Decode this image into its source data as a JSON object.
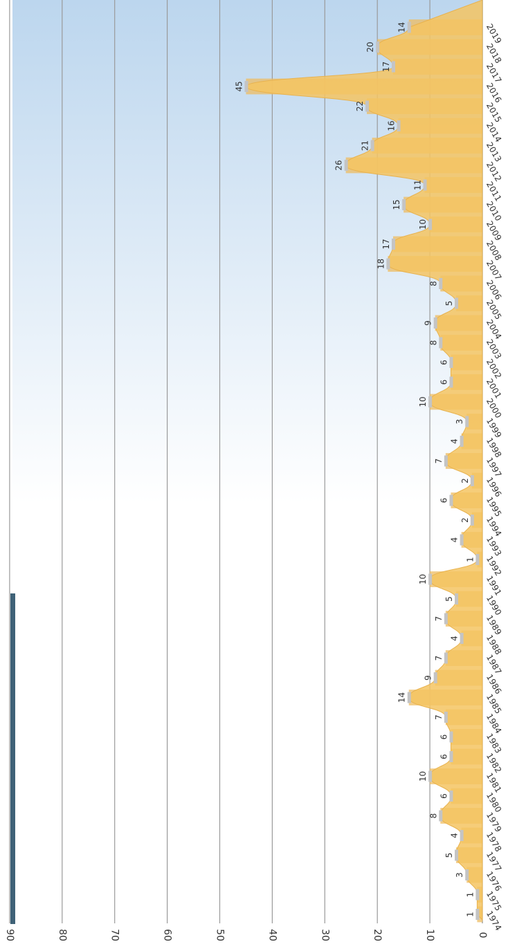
{
  "chart_data": {
    "type": "area",
    "orientation": "rotated-90-clockwise",
    "title": "",
    "xlabel": "",
    "ylabel": "",
    "ylim": [
      0,
      90
    ],
    "y_ticks": [
      0,
      10,
      20,
      30,
      40,
      50,
      60,
      70,
      80,
      90
    ],
    "grid": true,
    "legend": "none",
    "categories": [
      "1974",
      "1975",
      "1976",
      "1977",
      "1978",
      "1979",
      "1980",
      "1981",
      "1982",
      "1983",
      "1984",
      "1985",
      "1986",
      "1987",
      "1988",
      "1989",
      "1990",
      "1991",
      "1992",
      "1993",
      "1994",
      "1995",
      "1996",
      "1997",
      "1998",
      "1999",
      "2000",
      "2001",
      "2002",
      "2003",
      "2004",
      "2005",
      "2006",
      "2007",
      "2008",
      "2009",
      "2010",
      "2011",
      "2012",
      "2013",
      "2014",
      "2015",
      "2016",
      "2017",
      "2018",
      "2019"
    ],
    "values": [
      1,
      1,
      3,
      5,
      4,
      8,
      6,
      10,
      6,
      6,
      7,
      14,
      9,
      7,
      4,
      7,
      5,
      10,
      1,
      4,
      2,
      6,
      2,
      7,
      4,
      3,
      10,
      6,
      6,
      8,
      9,
      5,
      8,
      18,
      17,
      10,
      15,
      11,
      26,
      21,
      16,
      22,
      45,
      17,
      20,
      14
    ],
    "data_labels": [
      "1",
      "1",
      "3",
      "5",
      "4",
      "8",
      "6",
      "10",
      "6",
      "6",
      "7",
      "14",
      "9",
      "7",
      "4",
      "7",
      "5",
      "10",
      "1",
      "4",
      "2",
      "6",
      "2",
      "7",
      "4",
      "3",
      "10",
      "6",
      "6",
      "8",
      "9",
      "5",
      "8",
      "18",
      "17",
      "10",
      "15",
      "11",
      "26",
      "21",
      "16",
      "22",
      "45",
      "17",
      "20",
      "14"
    ],
    "colors": {
      "area_fill": "#f5c462",
      "area_stroke": "#e8b24e",
      "bar_fill": "#eebc62",
      "marker": "#c4c4c4",
      "grid": "#9a9a9a",
      "background_top": "#bcd6ee",
      "background_bottom": "#ffffff",
      "accent_strip": "#3f6277"
    }
  }
}
